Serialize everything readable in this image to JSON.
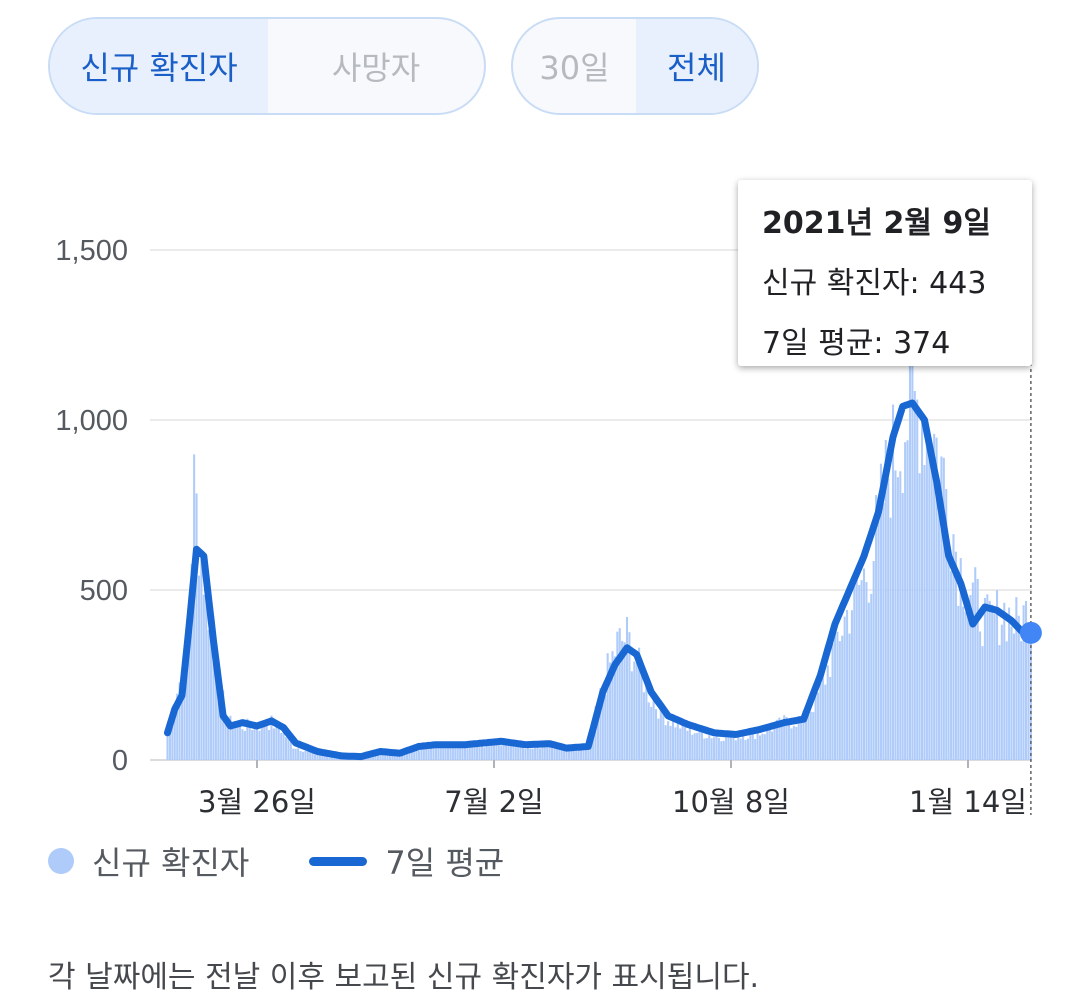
{
  "controls": {
    "metric_options": [
      "신규 확진자",
      "사망자"
    ],
    "metric_selected": "신규 확진자",
    "range_options": [
      "30일",
      "전체"
    ],
    "range_selected": "전체"
  },
  "tooltip": {
    "date": "2021년 2월 9일",
    "cases_line": "신규 확진자: 443",
    "avg_line": "7일 평균: 374"
  },
  "legend": {
    "bars_label": "신규 확진자",
    "line_label": "7일 평균"
  },
  "footnote": "각 날짜에는 전날 이후 보고된 신규 확진자가 표시됩니다.",
  "colors": {
    "bars": "#aecbfa",
    "line": "#1967d2",
    "marker": "#4285f4",
    "grid": "#ebebeb"
  },
  "chart_data": {
    "type": "bar",
    "title": "",
    "xlabel": "",
    "ylabel": "",
    "ylim": [
      0,
      1700
    ],
    "yticks": [
      "0",
      "500",
      "1,000",
      "1,500"
    ],
    "ytick_values": [
      0,
      500,
      1000,
      1500
    ],
    "xticks": [
      {
        "label": "3월 26일",
        "date": "2020-03-26"
      },
      {
        "label": "7월 2일",
        "date": "2020-07-02"
      },
      {
        "label": "10월 8일",
        "date": "2020-10-08"
      },
      {
        "label": "1월 14일",
        "date": "2021-01-14"
      }
    ],
    "x_range": [
      "2020-02-18",
      "2021-02-09"
    ],
    "grid": true,
    "legend_position": "bottom",
    "series": [
      {
        "name": "신규 확진자",
        "kind": "bar",
        "keypoints": [
          [
            "2020-02-18",
            80
          ],
          [
            "2020-02-22",
            200
          ],
          [
            "2020-02-26",
            310
          ],
          [
            "2020-02-29",
            800
          ],
          [
            "2020-03-03",
            600
          ],
          [
            "2020-03-07",
            400
          ],
          [
            "2020-03-10",
            230
          ],
          [
            "2020-03-14",
            110
          ],
          [
            "2020-03-20",
            100
          ],
          [
            "2020-03-26",
            100
          ],
          [
            "2020-04-01",
            110
          ],
          [
            "2020-04-05",
            90
          ],
          [
            "2020-04-10",
            40
          ],
          [
            "2020-04-20",
            15
          ],
          [
            "2020-05-05",
            5
          ],
          [
            "2020-05-12",
            25
          ],
          [
            "2020-05-20",
            30
          ],
          [
            "2020-05-26",
            20
          ],
          [
            "2020-06-05",
            45
          ],
          [
            "2020-06-15",
            45
          ],
          [
            "2020-06-25",
            45
          ],
          [
            "2020-07-05",
            55
          ],
          [
            "2020-07-15",
            40
          ],
          [
            "2020-07-25",
            45
          ],
          [
            "2020-08-01",
            30
          ],
          [
            "2020-08-10",
            40
          ],
          [
            "2020-08-14",
            160
          ],
          [
            "2020-08-18",
            260
          ],
          [
            "2020-08-22",
            340
          ],
          [
            "2020-08-26",
            360
          ],
          [
            "2020-08-30",
            290
          ],
          [
            "2020-09-05",
            180
          ],
          [
            "2020-09-12",
            120
          ],
          [
            "2020-09-20",
            90
          ],
          [
            "2020-10-01",
            70
          ],
          [
            "2020-10-10",
            70
          ],
          [
            "2020-10-20",
            80
          ],
          [
            "2020-10-30",
            110
          ],
          [
            "2020-11-07",
            120
          ],
          [
            "2020-11-14",
            200
          ],
          [
            "2020-11-21",
            360
          ],
          [
            "2020-11-28",
            480
          ],
          [
            "2020-12-05",
            580
          ],
          [
            "2020-12-12",
            850
          ],
          [
            "2020-12-19",
            1000
          ],
          [
            "2020-12-25",
            1050
          ],
          [
            "2020-12-30",
            980
          ],
          [
            "2021-01-05",
            800
          ],
          [
            "2021-01-10",
            580
          ],
          [
            "2021-01-15",
            500
          ],
          [
            "2021-01-22",
            400
          ],
          [
            "2021-01-29",
            440
          ],
          [
            "2021-02-03",
            400
          ],
          [
            "2021-02-09",
            443
          ]
        ]
      },
      {
        "name": "7일 평균",
        "kind": "line",
        "keypoints": [
          [
            "2020-02-18",
            80
          ],
          [
            "2020-02-21",
            150
          ],
          [
            "2020-02-24",
            190
          ],
          [
            "2020-02-27",
            400
          ],
          [
            "2020-03-01",
            620
          ],
          [
            "2020-03-04",
            600
          ],
          [
            "2020-03-08",
            350
          ],
          [
            "2020-03-12",
            130
          ],
          [
            "2020-03-15",
            100
          ],
          [
            "2020-03-20",
            110
          ],
          [
            "2020-03-26",
            100
          ],
          [
            "2020-04-01",
            115
          ],
          [
            "2020-04-06",
            95
          ],
          [
            "2020-04-11",
            50
          ],
          [
            "2020-04-20",
            25
          ],
          [
            "2020-04-30",
            12
          ],
          [
            "2020-05-08",
            10
          ],
          [
            "2020-05-16",
            25
          ],
          [
            "2020-05-24",
            20
          ],
          [
            "2020-06-01",
            40
          ],
          [
            "2020-06-08",
            45
          ],
          [
            "2020-06-20",
            45
          ],
          [
            "2020-07-05",
            55
          ],
          [
            "2020-07-15",
            45
          ],
          [
            "2020-07-25",
            48
          ],
          [
            "2020-08-01",
            35
          ],
          [
            "2020-08-10",
            40
          ],
          [
            "2020-08-16",
            200
          ],
          [
            "2020-08-21",
            280
          ],
          [
            "2020-08-26",
            330
          ],
          [
            "2020-08-30",
            310
          ],
          [
            "2020-09-05",
            200
          ],
          [
            "2020-09-12",
            130
          ],
          [
            "2020-09-20",
            105
          ],
          [
            "2020-10-01",
            80
          ],
          [
            "2020-10-10",
            75
          ],
          [
            "2020-10-20",
            90
          ],
          [
            "2020-10-30",
            110
          ],
          [
            "2020-11-07",
            120
          ],
          [
            "2020-11-14",
            250
          ],
          [
            "2020-11-20",
            400
          ],
          [
            "2020-11-26",
            500
          ],
          [
            "2020-12-02",
            600
          ],
          [
            "2020-12-08",
            730
          ],
          [
            "2020-12-14",
            950
          ],
          [
            "2020-12-18",
            1040
          ],
          [
            "2020-12-22",
            1050
          ],
          [
            "2020-12-27",
            1000
          ],
          [
            "2021-01-01",
            820
          ],
          [
            "2021-01-06",
            600
          ],
          [
            "2021-01-11",
            520
          ],
          [
            "2021-01-16",
            400
          ],
          [
            "2021-01-21",
            450
          ],
          [
            "2021-01-26",
            440
          ],
          [
            "2021-02-01",
            410
          ],
          [
            "2021-02-05",
            380
          ],
          [
            "2021-02-09",
            374
          ]
        ]
      }
    ],
    "highlight": {
      "date": "2021-02-09",
      "cases": 443,
      "avg": 374
    }
  }
}
